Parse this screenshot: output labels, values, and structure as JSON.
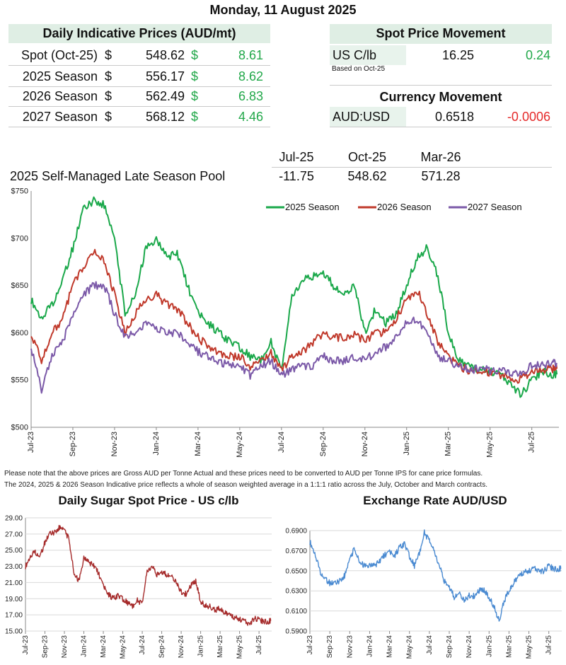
{
  "date_title": "Monday, 11 August 2025",
  "daily": {
    "title": "Daily Indicative Prices (AUD/mt)",
    "currency": "$",
    "rows": [
      {
        "label": "Spot (Oct-25)",
        "price": "548.62",
        "change": "8.61"
      },
      {
        "label": "2025 Season",
        "price": "556.17",
        "change": "8.62"
      },
      {
        "label": "2026 Season",
        "price": "562.49",
        "change": "6.83"
      },
      {
        "label": "2027 Season",
        "price": "568.12",
        "change": "4.46"
      }
    ]
  },
  "spot": {
    "title": "Spot Price Movement",
    "label": "US C/lb",
    "value": "16.25",
    "change": "0.24",
    "note": "Based on Oct-25"
  },
  "currency": {
    "title": "Currency Movement",
    "label": "AUD:USD",
    "value": "0.6518",
    "change": "-0.0006"
  },
  "pool": {
    "headers": [
      "Jul-25",
      "Oct-25",
      "Mar-26"
    ],
    "label": "2025 Self-Managed Late Season Pool",
    "values": [
      "-11.75",
      "548.62",
      "571.28"
    ]
  },
  "notes": [
    "Please note that the above prices are Gross AUD per Tonne Actual and these prices need to be converted to AUD per Tonne IPS for cane price formulas.",
    "The 2024, 2025 & 2026 Season Indicative price reflects a whole of season weighted average in a 1:1:1 ratio across the July, October and March contracts."
  ],
  "colors": {
    "green": "#22a84a",
    "red": "#e52b2b",
    "s2025": "#1aa84a",
    "s2026": "#c0392b",
    "s2027": "#7b59a8",
    "sugar": "#a52a2a",
    "fx": "#4a8ad1"
  },
  "chart_data": [
    {
      "type": "line",
      "title": "",
      "ylim": [
        500,
        750
      ],
      "yticks": [
        "$500",
        "$550",
        "$600",
        "$650",
        "$700",
        "$750"
      ],
      "x_ticks": [
        "Jul-23",
        "Sep-23",
        "Nov-23",
        "Jan-24",
        "Mar-24",
        "May-24",
        "Jul-24",
        "Sep-24",
        "Nov-24",
        "Jan-25",
        "Mar-25",
        "May-25",
        "Jul-25"
      ],
      "legend_position": "top-right",
      "series": [
        {
          "name": "2025 Season",
          "months": [
            0,
            0.5,
            1,
            1.5,
            2,
            2.5,
            3,
            3.5,
            4,
            4.5,
            5,
            5.5,
            6,
            6.5,
            7,
            7.5,
            8,
            8.5,
            9,
            9.5,
            10,
            10.5,
            11,
            11.5,
            12,
            12.5,
            13,
            13.5,
            14,
            14.5,
            15,
            15.5,
            16,
            16.5,
            17,
            17.5,
            18,
            18.5,
            19,
            19.5,
            20,
            20.5,
            21,
            21.5,
            22,
            22.5,
            23,
            23.5,
            24,
            24.5,
            25,
            25.2
          ],
          "values": [
            635,
            615,
            630,
            655,
            690,
            730,
            740,
            735,
            700,
            620,
            640,
            690,
            698,
            680,
            685,
            650,
            620,
            610,
            600,
            590,
            585,
            575,
            570,
            590,
            560,
            640,
            655,
            660,
            665,
            650,
            640,
            650,
            600,
            625,
            610,
            620,
            650,
            680,
            690,
            660,
            600,
            570,
            565,
            560,
            560,
            555,
            545,
            535,
            550,
            560,
            556,
            556
          ]
        },
        {
          "name": "2026 Season",
          "months": [
            0,
            0.5,
            1,
            1.5,
            2,
            2.5,
            3,
            3.5,
            4,
            4.5,
            5,
            5.5,
            6,
            6.5,
            7,
            7.5,
            8,
            8.5,
            9,
            9.5,
            10,
            10.5,
            11,
            11.5,
            12,
            12.5,
            13,
            13.5,
            14,
            14.5,
            15,
            15.5,
            16,
            16.5,
            17,
            17.5,
            18,
            18.5,
            19,
            19.5,
            20,
            20.5,
            21,
            21.5,
            22,
            22.5,
            23,
            23.5,
            24,
            24.5,
            25,
            25.2
          ],
          "values": [
            600,
            570,
            600,
            615,
            650,
            670,
            685,
            675,
            640,
            600,
            620,
            635,
            640,
            630,
            625,
            610,
            595,
            585,
            580,
            575,
            575,
            565,
            570,
            580,
            560,
            575,
            580,
            590,
            600,
            595,
            595,
            600,
            590,
            600,
            600,
            615,
            635,
            645,
            620,
            590,
            575,
            565,
            560,
            560,
            558,
            555,
            553,
            550,
            560,
            560,
            562,
            562
          ]
        },
        {
          "name": "2027 Season",
          "months": [
            0,
            0.5,
            1,
            1.5,
            2,
            2.5,
            3,
            3.5,
            4,
            4.5,
            5,
            5.5,
            6,
            6.5,
            7,
            7.5,
            8,
            8.5,
            9,
            9.5,
            10,
            10.5,
            11,
            11.5,
            12,
            12.5,
            13,
            13.5,
            14,
            14.5,
            15,
            15.5,
            16,
            16.5,
            17,
            17.5,
            18,
            18.5,
            19,
            19.5,
            20,
            20.5,
            21,
            21.5,
            22,
            22.5,
            23,
            23.5,
            24,
            24.5,
            25,
            25.2
          ],
          "values": [
            585,
            540,
            575,
            590,
            620,
            640,
            650,
            650,
            620,
            595,
            600,
            610,
            605,
            600,
            600,
            590,
            580,
            575,
            570,
            565,
            565,
            555,
            565,
            570,
            555,
            560,
            565,
            565,
            575,
            570,
            570,
            575,
            570,
            580,
            585,
            595,
            610,
            615,
            600,
            575,
            570,
            565,
            560,
            563,
            560,
            560,
            558,
            558,
            565,
            565,
            568,
            568
          ]
        }
      ]
    },
    {
      "type": "line",
      "title": "Daily Sugar Spot Price - US c/lb",
      "ylim": [
        15.0,
        29.0
      ],
      "yticks": [
        "15.00",
        "17.00",
        "19.00",
        "21.00",
        "23.00",
        "25.00",
        "27.00",
        "29.00"
      ],
      "x_ticks": [
        "Jul-23",
        "Sep-23",
        "Nov-23",
        "Jan-24",
        "Mar-24",
        "May-24",
        "Jul-24",
        "Sep-24",
        "Nov-24",
        "Jan-25",
        "Mar-25",
        "May-25",
        "Jul-25"
      ],
      "series": [
        {
          "name": "",
          "months": [
            0,
            0.5,
            1,
            1.5,
            2,
            2.5,
            3,
            3.5,
            4,
            4.5,
            5,
            5.5,
            6,
            6.5,
            7,
            7.5,
            8,
            8.5,
            9,
            9.5,
            10,
            10.5,
            11,
            11.5,
            12,
            12.5,
            13,
            13.5,
            14,
            14.5,
            15,
            15.5,
            16,
            16.5,
            17,
            17.5,
            18,
            18.5,
            19,
            19.5,
            20,
            20.5,
            21,
            21.5,
            22,
            22.5,
            23,
            23.5,
            24,
            24.5,
            25,
            25.2
          ],
          "values": [
            23.0,
            24.2,
            24.8,
            24.2,
            26.0,
            27.0,
            27.2,
            27.8,
            27.6,
            26.2,
            22.0,
            21.2,
            24.0,
            23.5,
            23.2,
            22.2,
            20.5,
            19.6,
            19.0,
            19.3,
            19.0,
            18.5,
            18.0,
            18.8,
            18.4,
            22.5,
            23.0,
            22.0,
            22.4,
            22.0,
            21.8,
            21.0,
            19.8,
            19.6,
            20.6,
            21.2,
            18.6,
            18.2,
            18.0,
            17.6,
            17.8,
            17.2,
            17.0,
            16.6,
            16.5,
            16.2,
            15.8,
            16.6,
            16.4,
            16.2,
            16.2,
            16.25
          ]
        }
      ]
    },
    {
      "type": "line",
      "title": "Exchange Rate AUD/USD",
      "ylim": [
        0.59,
        0.69
      ],
      "yticks": [
        "0.5900",
        "0.6100",
        "0.6300",
        "0.6500",
        "0.6700",
        "0.6900"
      ],
      "x_ticks": [
        "Jul-23",
        "Sep-23",
        "Nov-23",
        "Jan-24",
        "Mar-24",
        "May-24",
        "Jul-24",
        "Sep-24",
        "Nov-24",
        "Jan-25",
        "Mar-25",
        "May-25",
        "Jul-25"
      ],
      "series": [
        {
          "name": "",
          "months": [
            0,
            0.5,
            1,
            1.5,
            2,
            2.5,
            3,
            3.5,
            4,
            4.5,
            5,
            5.5,
            6,
            6.5,
            7,
            7.5,
            8,
            8.5,
            9,
            9.5,
            10,
            10.5,
            11,
            11.5,
            12,
            12.5,
            13,
            13.5,
            14,
            14.5,
            15,
            15.5,
            16,
            16.5,
            17,
            17.5,
            18,
            18.5,
            19,
            19.5,
            20,
            20.5,
            21,
            21.5,
            22,
            22.5,
            23,
            23.5,
            24,
            24.5,
            25,
            25.2
          ],
          "values": [
            0.679,
            0.667,
            0.65,
            0.642,
            0.638,
            0.637,
            0.64,
            0.645,
            0.662,
            0.672,
            0.658,
            0.655,
            0.655,
            0.655,
            0.66,
            0.666,
            0.668,
            0.665,
            0.673,
            0.676,
            0.665,
            0.655,
            0.667,
            0.688,
            0.68,
            0.67,
            0.655,
            0.64,
            0.635,
            0.624,
            0.628,
            0.62,
            0.625,
            0.625,
            0.63,
            0.631,
            0.623,
            0.615,
            0.6,
            0.62,
            0.63,
            0.638,
            0.645,
            0.648,
            0.65,
            0.652,
            0.65,
            0.65,
            0.655,
            0.652,
            0.652,
            0.652
          ]
        }
      ]
    }
  ]
}
